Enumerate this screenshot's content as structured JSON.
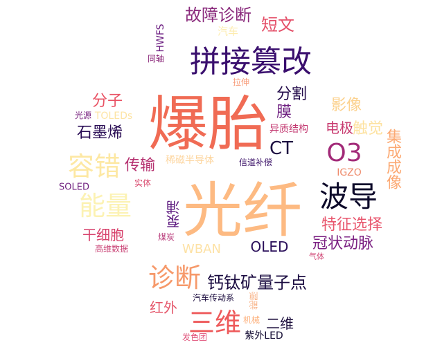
{
  "words": [
    {
      "text": "爆胎",
      "color": "#f06b54"
    },
    {
      "text": "光纤",
      "color": "#fdba82"
    },
    {
      "text": "拼接篡改",
      "color": "#3a0f6e"
    },
    {
      "text": "波导",
      "color": "#0d0a2a"
    },
    {
      "text": "O3",
      "color": "#a22a78"
    },
    {
      "text": "容错",
      "color": "#fde8a3"
    },
    {
      "text": "能量",
      "color": "#fcf2b3"
    },
    {
      "text": "三维",
      "color": "#ee5a5b"
    },
    {
      "text": "诊断",
      "color": "#f6996a"
    },
    {
      "text": "故障诊断",
      "color": "#8a2a7c"
    },
    {
      "text": "短文",
      "color": "#e44f68"
    },
    {
      "text": "分割",
      "color": "#230b4a"
    },
    {
      "text": "膜",
      "color": "#6e1f80"
    },
    {
      "text": "影像",
      "color": "#fcd28f"
    },
    {
      "text": "电极",
      "color": "#c83a6f"
    },
    {
      "text": "触觉",
      "color": "#fde2a0"
    },
    {
      "text": "异质结构",
      "color": "#c43c73"
    },
    {
      "text": "CT",
      "color": "#1c0d40"
    },
    {
      "text": "集成成像",
      "color": "#fca973"
    },
    {
      "text": "IGZO",
      "color": "#ee8a6a"
    },
    {
      "text": "分子",
      "color": "#e95264"
    },
    {
      "text": "石墨烯",
      "color": "#2a0e55"
    },
    {
      "text": "TOLEDs",
      "color": "#fde4a4"
    },
    {
      "text": "光源",
      "color": "#7a2380"
    },
    {
      "text": "传输",
      "color": "#b5306f"
    },
    {
      "text": "稀磁半导体",
      "color": "#fdd59e"
    },
    {
      "text": "信道补偿",
      "color": "#3b1268"
    },
    {
      "text": "实体",
      "color": "#d9496e"
    },
    {
      "text": "SOLED",
      "color": "#6f1f7e"
    },
    {
      "text": "特征选择",
      "color": "#e8556c"
    },
    {
      "text": "冠状动脉",
      "color": "#7b2082"
    },
    {
      "text": "气体",
      "color": "#cf4373"
    },
    {
      "text": "OLED",
      "color": "#2a0f5a"
    },
    {
      "text": "WBAN",
      "color": "#fde2a6"
    },
    {
      "text": "泵浦",
      "color": "#5e1b80"
    },
    {
      "text": "煤炭",
      "color": "#b83a7a"
    },
    {
      "text": "干细胞",
      "color": "#d7406b"
    },
    {
      "text": "高维数据",
      "color": "#c94275"
    },
    {
      "text": "钙钛矿量子点",
      "color": "#1b0c41"
    },
    {
      "text": "汽车传动系",
      "color": "#1c0d3f"
    },
    {
      "text": "能隙",
      "color": "#f8b48a"
    },
    {
      "text": "红外",
      "color": "#e5566a"
    },
    {
      "text": "机械",
      "color": "#fdb27e"
    },
    {
      "text": "二维",
      "color": "#1a0c3b"
    },
    {
      "text": "发色团",
      "color": "#e0527a"
    },
    {
      "text": "紫外LED",
      "color": "#120a32"
    },
    {
      "text": "HWFS",
      "color": "#6b1d80"
    },
    {
      "text": "同轴",
      "color": "#8a2679"
    },
    {
      "text": "汽车",
      "color": "#fdecae"
    },
    {
      "text": "拉伸",
      "color": "#f89e7c"
    }
  ]
}
